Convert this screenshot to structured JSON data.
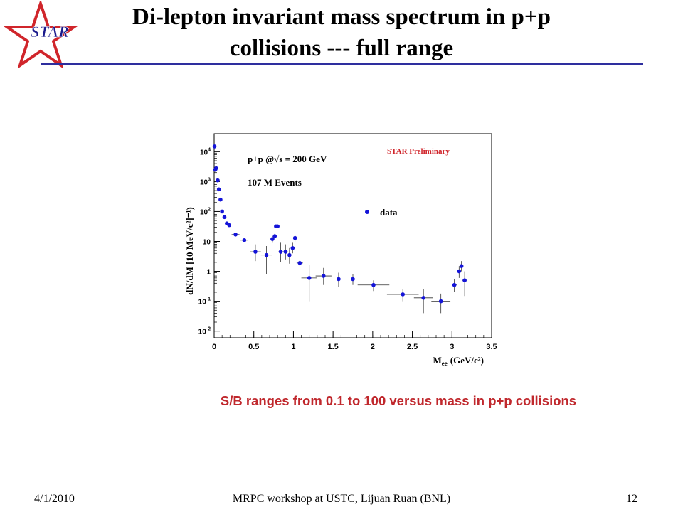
{
  "slide": {
    "title_line1": "Di-lepton invariant mass spectrum in p+p",
    "title_line2": "collisions --- full range",
    "logo_text": "STAR",
    "note": "S/B ranges from 0.1 to 100 versus mass in p+p collisions",
    "footer_date": "4/1/2010",
    "footer_center": "MRPC workshop at USTC, Lijuan Ruan (BNL)",
    "page_number": "12",
    "colors": {
      "title_rule": "#2e2e9e",
      "note": "#c0282d",
      "logo_star": "#d0252b"
    }
  },
  "chart_data": {
    "type": "scatter",
    "xlabel": "M",
    "xlabel_sub": "ee",
    "xlabel_unit": "(GeV/c²)",
    "ylabel": "dN/dM [10 MeV/c²]⁻¹)",
    "yscale": "log",
    "xlim": [
      0,
      3.5
    ],
    "ylim": [
      0.006,
      40000
    ],
    "x_ticks": [
      {
        "value": 0,
        "label": "0"
      },
      {
        "value": 0.5,
        "label": "0.5"
      },
      {
        "value": 1,
        "label": "1"
      },
      {
        "value": 1.5,
        "label": "1.5"
      },
      {
        "value": 2,
        "label": "2"
      },
      {
        "value": 2.5,
        "label": "2.5"
      },
      {
        "value": 3,
        "label": "3"
      },
      {
        "value": 3.5,
        "label": "3.5"
      }
    ],
    "y_ticks": [
      {
        "value": 0.01,
        "base": "10",
        "exp": "-2"
      },
      {
        "value": 0.1,
        "base": "10",
        "exp": "-1"
      },
      {
        "value": 1,
        "base": "1",
        "exp": ""
      },
      {
        "value": 10,
        "base": "10",
        "exp": ""
      },
      {
        "value": 100,
        "base": "10",
        "exp": "2"
      },
      {
        "value": 1000,
        "base": "10",
        "exp": "3"
      },
      {
        "value": 10000,
        "base": "10",
        "exp": "4"
      }
    ],
    "annotations": {
      "system": "p+p @√s = 200 GeV",
      "events": "107 M Events",
      "preliminary": "STAR Preliminary"
    },
    "legend": {
      "label": "data",
      "placement": "top-right"
    },
    "marker_color": "#1414d8",
    "preliminary_color": "#d0252b",
    "grid": false,
    "series": [
      {
        "name": "data",
        "points": [
          {
            "x": 0.005,
            "y": 15000,
            "xerr": 0.005,
            "ylo": 15000,
            "yhi": 15000
          },
          {
            "x": 0.015,
            "y": 2500,
            "xerr": 0.005,
            "ylo": 2500,
            "yhi": 2500
          },
          {
            "x": 0.025,
            "y": 2800,
            "xerr": 0.005,
            "ylo": 2800,
            "yhi": 2800
          },
          {
            "x": 0.045,
            "y": 1100,
            "xerr": 0.005,
            "ylo": 1100,
            "yhi": 1100
          },
          {
            "x": 0.06,
            "y": 550,
            "xerr": 0.005,
            "ylo": 550,
            "yhi": 550
          },
          {
            "x": 0.08,
            "y": 250,
            "xerr": 0.005,
            "ylo": 250,
            "yhi": 250
          },
          {
            "x": 0.1,
            "y": 100,
            "xerr": 0.01,
            "ylo": 100,
            "yhi": 100
          },
          {
            "x": 0.13,
            "y": 65,
            "xerr": 0.01,
            "ylo": 65,
            "yhi": 65
          },
          {
            "x": 0.16,
            "y": 40,
            "xerr": 0.02,
            "ylo": 38,
            "yhi": 42
          },
          {
            "x": 0.19,
            "y": 35,
            "xerr": 0.02,
            "ylo": 33,
            "yhi": 37
          },
          {
            "x": 0.27,
            "y": 17,
            "xerr": 0.05,
            "ylo": 16,
            "yhi": 18
          },
          {
            "x": 0.38,
            "y": 11,
            "xerr": 0.05,
            "ylo": 10,
            "yhi": 12
          },
          {
            "x": 0.52,
            "y": 4.5,
            "xerr": 0.07,
            "ylo": 2.2,
            "yhi": 8
          },
          {
            "x": 0.66,
            "y": 3.5,
            "xerr": 0.07,
            "ylo": 0.8,
            "yhi": 7
          },
          {
            "x": 0.735,
            "y": 12,
            "xerr": 0.02,
            "ylo": 9,
            "yhi": 15
          },
          {
            "x": 0.765,
            "y": 15,
            "xerr": 0.02,
            "ylo": 12,
            "yhi": 18
          },
          {
            "x": 0.78,
            "y": 32,
            "xerr": 0.02,
            "ylo": 30,
            "yhi": 34
          },
          {
            "x": 0.8,
            "y": 32,
            "xerr": 0.02,
            "ylo": 30,
            "yhi": 34
          },
          {
            "x": 0.84,
            "y": 4.5,
            "xerr": 0.03,
            "ylo": 2,
            "yhi": 9
          },
          {
            "x": 0.9,
            "y": 4.5,
            "xerr": 0.03,
            "ylo": 2.5,
            "yhi": 8
          },
          {
            "x": 0.95,
            "y": 3.5,
            "xerr": 0.03,
            "ylo": 1.8,
            "yhi": 6
          },
          {
            "x": 0.99,
            "y": 6,
            "xerr": 0.02,
            "ylo": 4,
            "yhi": 9
          },
          {
            "x": 1.02,
            "y": 13,
            "xerr": 0.02,
            "ylo": 10,
            "yhi": 16
          },
          {
            "x": 1.08,
            "y": 1.9,
            "xerr": 0.04,
            "ylo": 1.5,
            "yhi": 2.3
          },
          {
            "x": 1.2,
            "y": 0.6,
            "xerr": 0.1,
            "ylo": 0.1,
            "yhi": 1.6
          },
          {
            "x": 1.38,
            "y": 0.7,
            "xerr": 0.1,
            "ylo": 0.35,
            "yhi": 1.3
          },
          {
            "x": 1.57,
            "y": 0.55,
            "xerr": 0.1,
            "ylo": 0.3,
            "yhi": 0.9
          },
          {
            "x": 1.75,
            "y": 0.55,
            "xerr": 0.1,
            "ylo": 0.35,
            "yhi": 0.8
          },
          {
            "x": 2.01,
            "y": 0.35,
            "xerr": 0.2,
            "ylo": 0.22,
            "yhi": 0.5
          },
          {
            "x": 2.38,
            "y": 0.17,
            "xerr": 0.2,
            "ylo": 0.1,
            "yhi": 0.26
          },
          {
            "x": 2.64,
            "y": 0.13,
            "xerr": 0.12,
            "ylo": 0.04,
            "yhi": 0.25
          },
          {
            "x": 2.86,
            "y": 0.1,
            "xerr": 0.12,
            "ylo": 0.04,
            "yhi": 0.18
          },
          {
            "x": 3.03,
            "y": 0.35,
            "xerr": 0.03,
            "ylo": 0.2,
            "yhi": 0.55
          },
          {
            "x": 3.09,
            "y": 1.0,
            "xerr": 0.02,
            "ylo": 0.6,
            "yhi": 1.5
          },
          {
            "x": 3.12,
            "y": 1.5,
            "xerr": 0.02,
            "ylo": 1.0,
            "yhi": 2.2
          },
          {
            "x": 3.16,
            "y": 0.5,
            "xerr": 0.03,
            "ylo": 0.15,
            "yhi": 1.0
          }
        ]
      }
    ]
  }
}
